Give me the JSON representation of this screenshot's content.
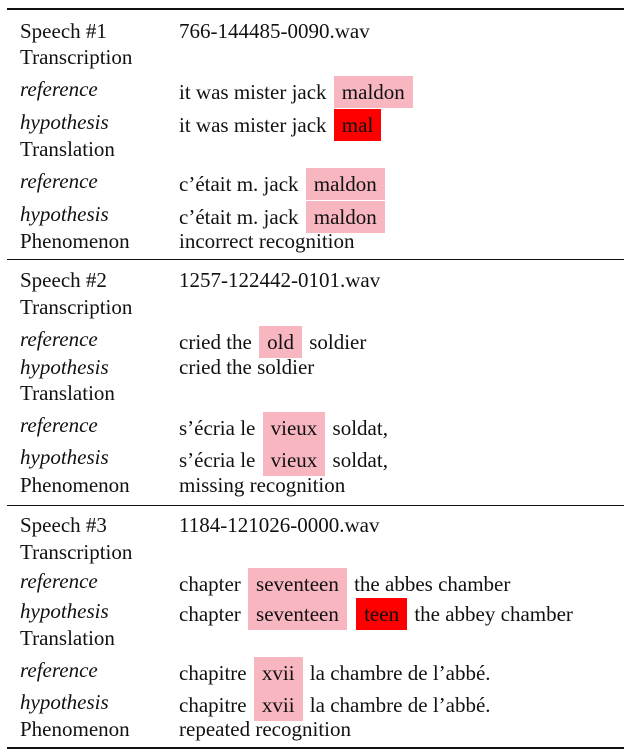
{
  "speeches": [
    {
      "id_label": "Speech #1",
      "file": "766-144485-0090.wav",
      "transcription_label": "Transcription",
      "transcription": {
        "reference_label": "reference",
        "hypothesis_label": "hypothesis",
        "reference": [
          {
            "t": "it was mister jack",
            "h": ""
          },
          {
            "t": "maldon",
            "h": "pink"
          }
        ],
        "hypothesis": [
          {
            "t": "it was mister jack",
            "h": ""
          },
          {
            "t": "mal",
            "h": "red"
          }
        ]
      },
      "translation_label": "Translation",
      "translation": {
        "reference_label": "reference",
        "hypothesis_label": "hypothesis",
        "reference": [
          {
            "t": "c’était m. jack",
            "h": ""
          },
          {
            "t": "maldon",
            "h": "pink"
          }
        ],
        "hypothesis": [
          {
            "t": "c’était m. jack",
            "h": ""
          },
          {
            "t": "maldon",
            "h": "pink"
          }
        ]
      },
      "phenomenon_label": "Phenomenon",
      "phenomenon": "incorrect recognition"
    },
    {
      "id_label": "Speech #2",
      "file": "1257-122442-0101.wav",
      "transcription_label": "Transcription",
      "transcription": {
        "reference_label": "reference",
        "hypothesis_label": "hypothesis",
        "reference": [
          {
            "t": "cried the",
            "h": ""
          },
          {
            "t": "old",
            "h": "pink"
          },
          {
            "t": "soldier",
            "h": ""
          }
        ],
        "hypothesis": [
          {
            "t": "cried the soldier",
            "h": ""
          }
        ]
      },
      "translation_label": "Translation",
      "translation": {
        "reference_label": "reference",
        "hypothesis_label": "hypothesis",
        "reference": [
          {
            "t": "s’écria le",
            "h": ""
          },
          {
            "t": "vieux",
            "h": "pink"
          },
          {
            "t": "soldat,",
            "h": ""
          }
        ],
        "hypothesis": [
          {
            "t": "s’écria le",
            "h": ""
          },
          {
            "t": "vieux",
            "h": "pink"
          },
          {
            "t": "soldat,",
            "h": ""
          }
        ]
      },
      "phenomenon_label": "Phenomenon",
      "phenomenon": "missing recognition"
    },
    {
      "id_label": "Speech #3",
      "file": "1184-121026-0000.wav",
      "transcription_label": "Transcription",
      "transcription": {
        "reference_label": "reference",
        "hypothesis_label": "hypothesis",
        "reference": [
          {
            "t": "chapter",
            "h": ""
          },
          {
            "t": "seventeen",
            "h": "pink"
          },
          {
            "t": "the abbes chamber",
            "h": ""
          }
        ],
        "hypothesis": [
          {
            "t": "chapter",
            "h": ""
          },
          {
            "t": "seventeen",
            "h": "pink"
          },
          {
            "t": "teen",
            "h": "red"
          },
          {
            "t": "the abbey chamber",
            "h": ""
          }
        ]
      },
      "translation_label": "Translation",
      "translation": {
        "reference_label": "reference",
        "hypothesis_label": "hypothesis",
        "reference": [
          {
            "t": "chapitre",
            "h": ""
          },
          {
            "t": "xvii",
            "h": "pink"
          },
          {
            "t": "la chambre de l’abbé.",
            "h": ""
          }
        ],
        "hypothesis": [
          {
            "t": "chapitre",
            "h": ""
          },
          {
            "t": "xvii",
            "h": "pink"
          },
          {
            "t": "la chambre de l’abbé.",
            "h": ""
          }
        ]
      },
      "phenomenon_label": "Phenomenon",
      "phenomenon": "repeated recognition"
    }
  ],
  "colors": {
    "pink_highlight": "#f7b6c0",
    "red_highlight": "#ff0000",
    "rule": "#111111"
  }
}
